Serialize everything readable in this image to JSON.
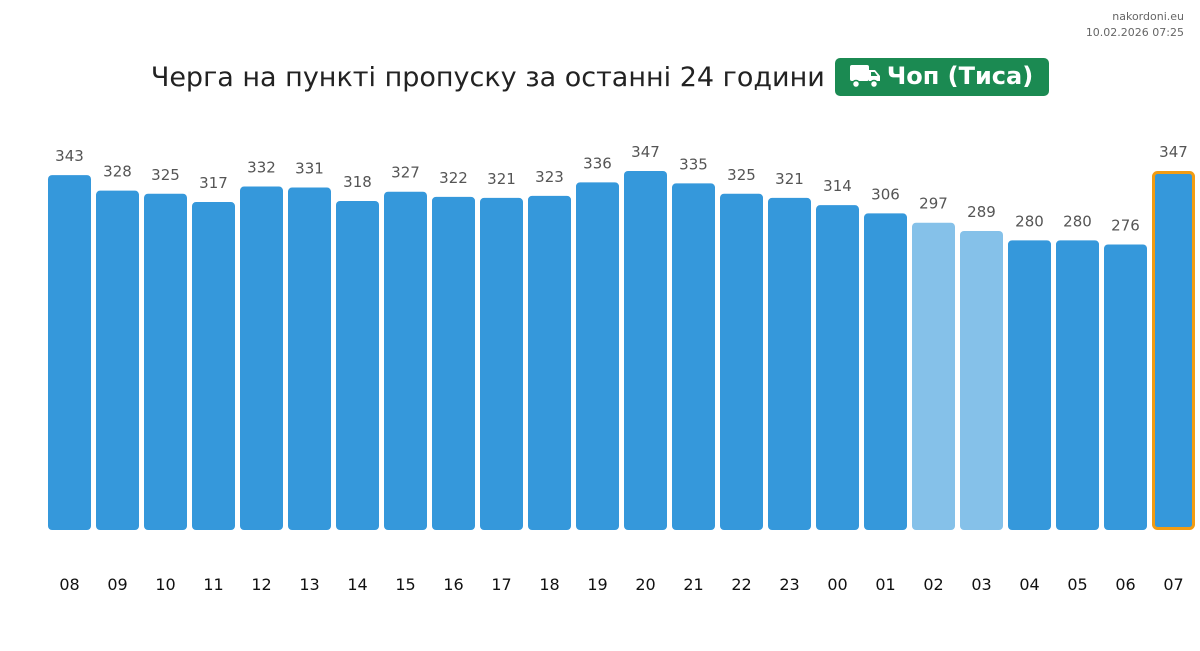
{
  "site": {
    "name": "nakordoni.eu",
    "timestamp": "10.02.2026 07:25"
  },
  "header": {
    "title": "Черга на пункті пропуску за останні 24 години",
    "checkpoint": "Чоп (Тиса)",
    "badge_icon": "truck-icon",
    "badge_color": "#1b8a52"
  },
  "chart_data": {
    "type": "bar",
    "categories": [
      "08",
      "09",
      "10",
      "11",
      "12",
      "13",
      "14",
      "15",
      "16",
      "17",
      "18",
      "19",
      "20",
      "21",
      "22",
      "23",
      "00",
      "01",
      "02",
      "03",
      "04",
      "05",
      "06",
      "07"
    ],
    "values": [
      343,
      328,
      325,
      317,
      332,
      331,
      318,
      327,
      322,
      321,
      323,
      336,
      347,
      335,
      325,
      321,
      314,
      306,
      297,
      289,
      280,
      280,
      276,
      347
    ],
    "colors": {
      "default": "#3598db",
      "light": "#85c1e9",
      "highlight_border": "#f39c12"
    },
    "light_categories": [
      "02",
      "03"
    ],
    "highlighted_category": "07",
    "ylim": [
      0,
      347
    ],
    "grid": false,
    "data_labels": true
  }
}
